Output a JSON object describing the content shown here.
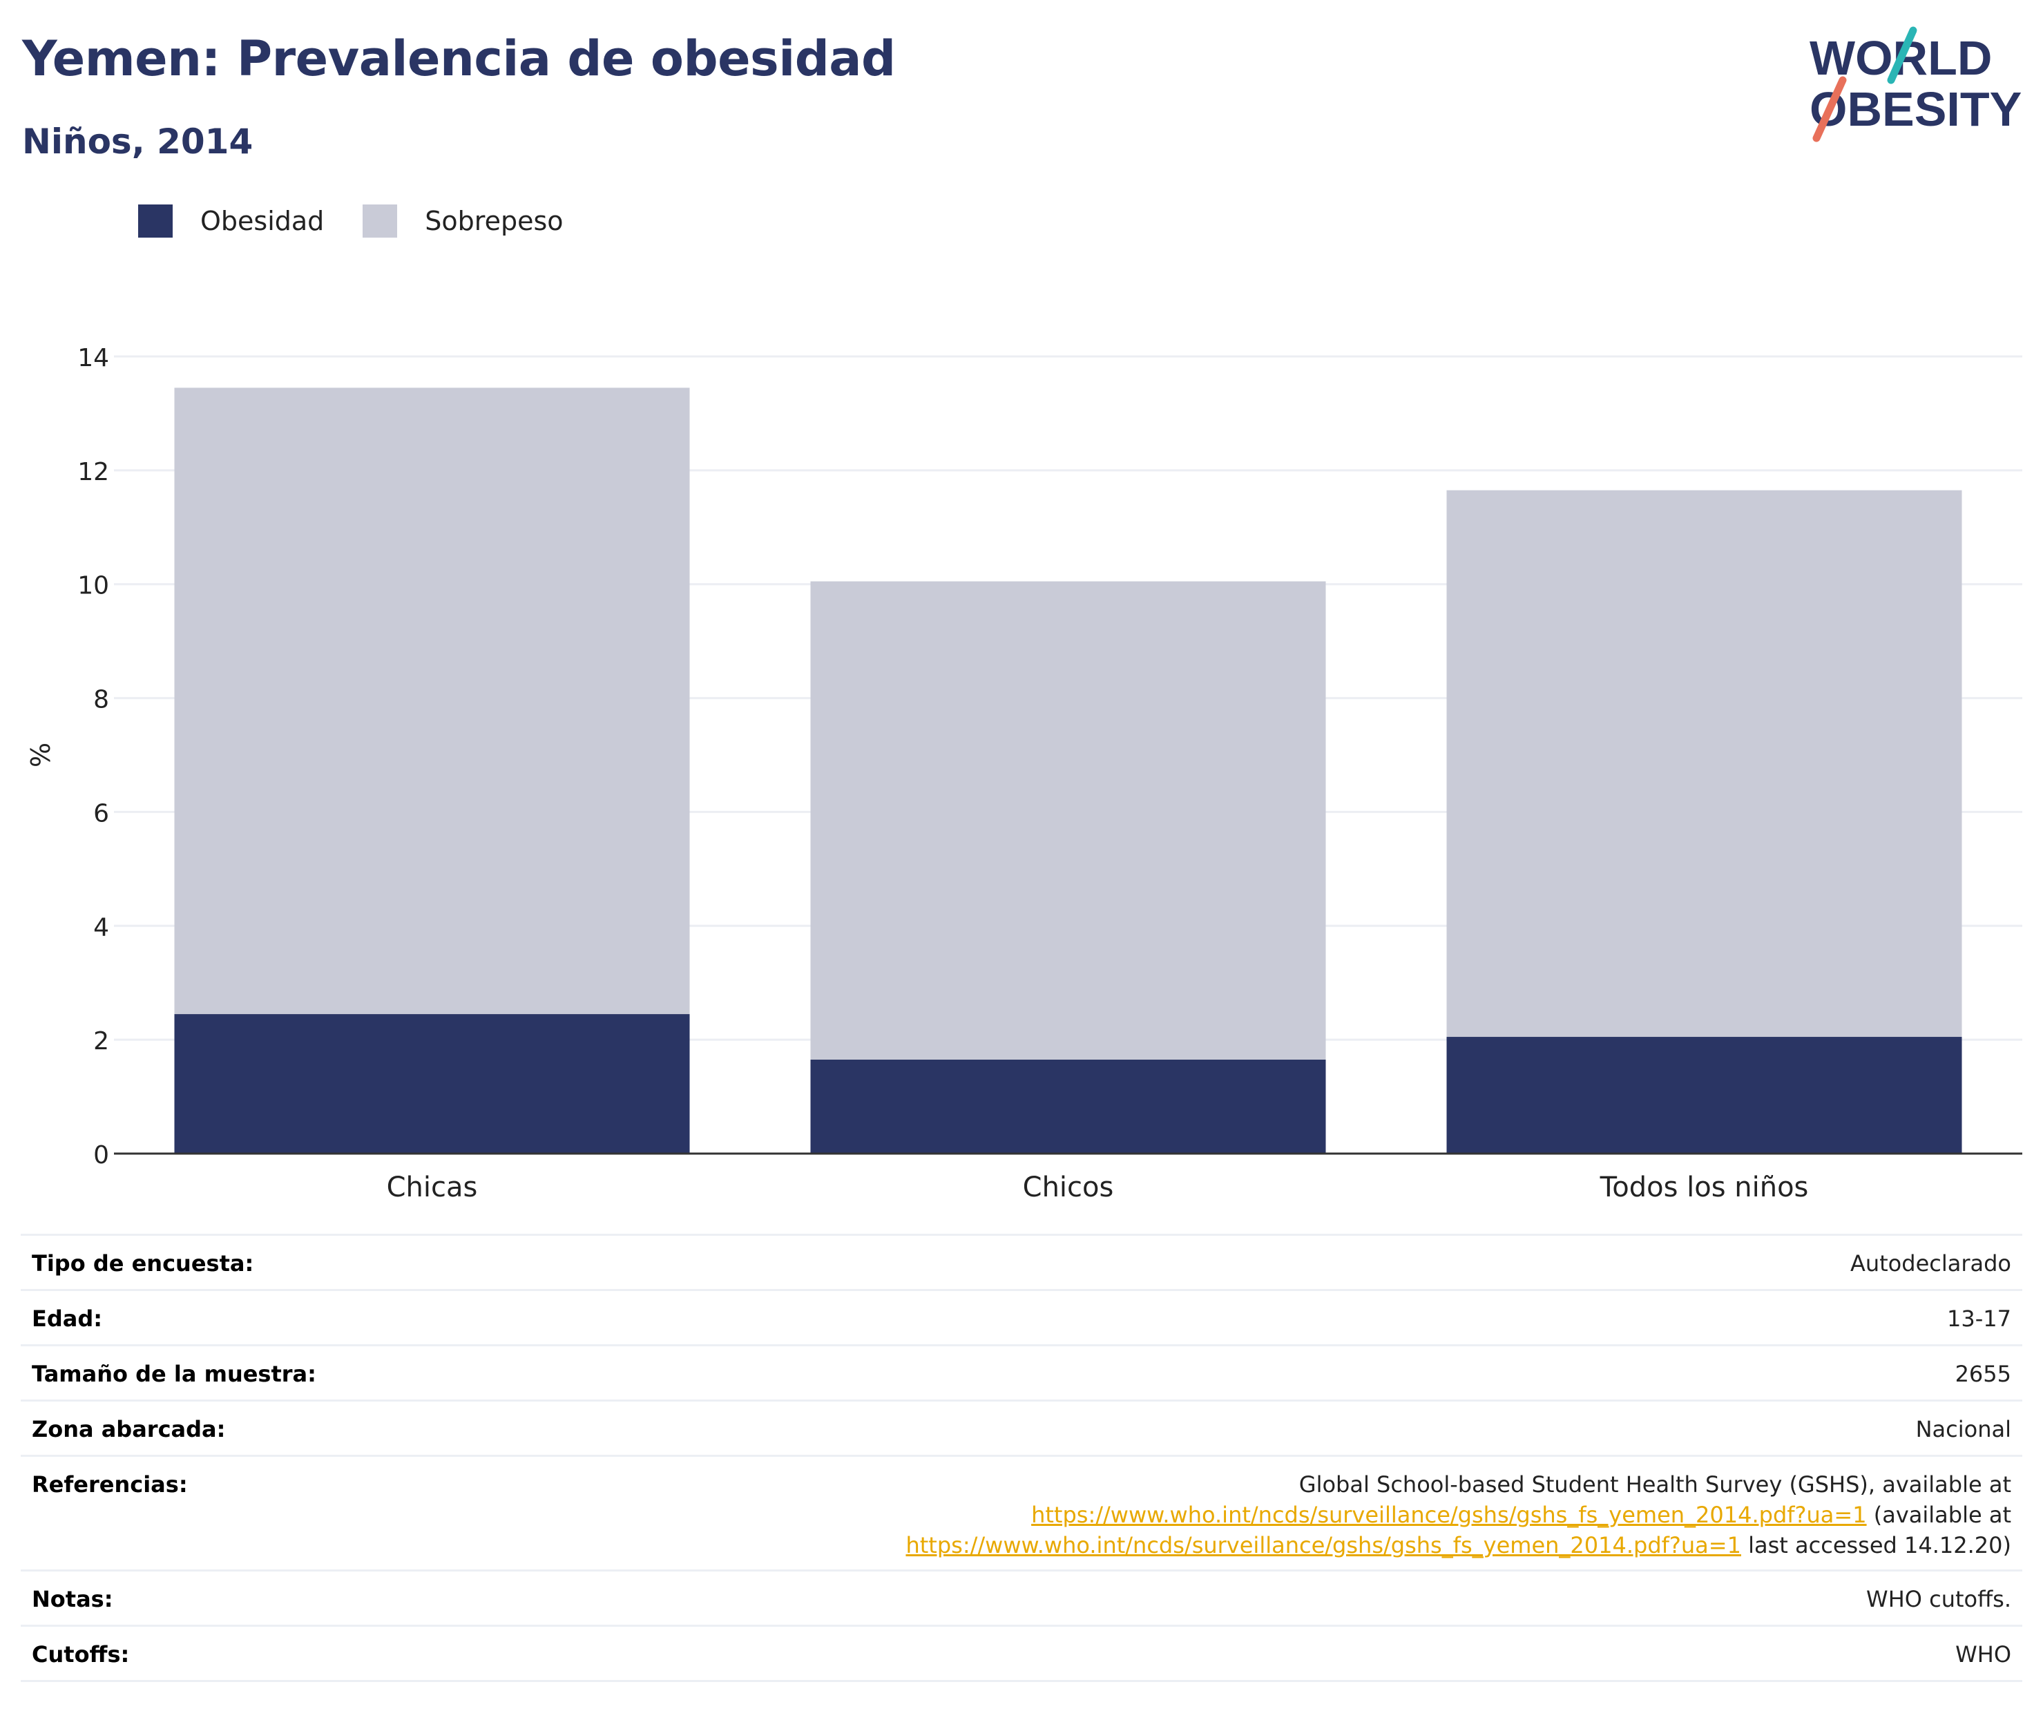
{
  "header": {
    "title": "Yemen: Prevalencia de obesidad",
    "subtitle": "Niños, 2014"
  },
  "logo": {
    "line1": "WORLD",
    "line2": "OBESITY",
    "accent_teal": "#2ab5b5",
    "accent_coral": "#e8705a",
    "text_color": "#2a3564"
  },
  "colors": {
    "obesity": "#2a3564",
    "overweight": "#c9cbd7",
    "grid": "#eceef3",
    "axis": "#333333"
  },
  "legend": {
    "items": [
      {
        "label": "Obesidad",
        "color": "#2a3564"
      },
      {
        "label": "Sobrepeso",
        "color": "#c9cbd7"
      }
    ],
    "position": "top-left"
  },
  "chart_data": {
    "type": "bar",
    "stacked": true,
    "categories": [
      "Chicas",
      "Chicos",
      "Todos los niños"
    ],
    "series": [
      {
        "name": "Obesidad",
        "values": [
          2.45,
          1.65,
          2.05
        ]
      },
      {
        "name": "Sobrepeso",
        "values": [
          11.0,
          8.4,
          9.6
        ]
      }
    ],
    "totals": [
      13.45,
      10.05,
      11.65
    ],
    "ylabel": "%",
    "ylim": [
      0,
      14
    ],
    "yticks": [
      "0",
      "2",
      "4",
      "6",
      "8",
      "10",
      "12",
      "14"
    ],
    "grid": true
  },
  "info": {
    "rows": [
      {
        "label": "Tipo de encuesta:",
        "value": "Autodeclarado"
      },
      {
        "label": "Edad:",
        "value": "13-17"
      },
      {
        "label": "Tamaño de la muestra:",
        "value": "2655"
      },
      {
        "label": "Zona abarcada:",
        "value": "Nacional"
      }
    ],
    "references": {
      "label": "Referencias:",
      "line1": "Global School-based Student Health Survey (GSHS), available at",
      "link1": "https://www.who.int/ncds/surveillance/gshs/gshs_fs_yemen_2014.pdf?ua=1",
      "after1": " (available at",
      "link2": "https://www.who.int/ncds/surveillance/gshs/gshs_fs_yemen_2014.pdf?ua=1",
      "after2": " last accessed 14.12.20)"
    },
    "notes": {
      "label": "Notas:",
      "value": "WHO cutoffs."
    },
    "cutoffs": {
      "label": "Cutoffs:",
      "value": "WHO"
    }
  }
}
